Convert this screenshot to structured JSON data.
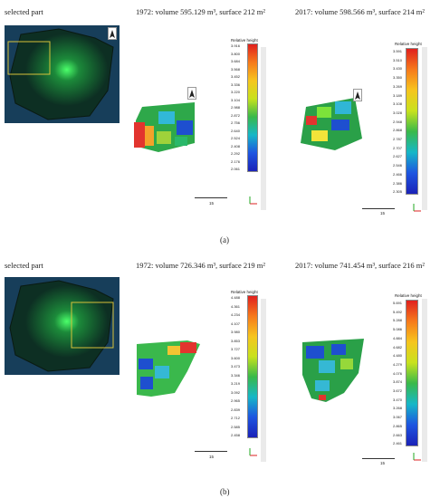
{
  "panels": [
    {
      "label": "(a)",
      "captions": {
        "selected": "selected part",
        "y1972": "1972: volume 595.129 m³, surface 212 m²",
        "y2017": "2017: volume 598.566 m³, surface 214 m²"
      },
      "cbar_title": "Relative height",
      "ticks_1972": [
        "3.916",
        "3.800",
        "3.684",
        "3.568",
        "3.452",
        "3.336",
        "3.220",
        "3.104",
        "2.988",
        "2.872",
        "2.756",
        "2.640",
        "2.524",
        "2.408",
        "2.292",
        "2.176",
        "2.061"
      ],
      "ticks_2017": [
        "3.591",
        "3.510",
        "3.430",
        "3.350",
        "3.269",
        "3.189",
        "3.108",
        "3.028",
        "2.948",
        "2.868",
        "2.787",
        "2.707",
        "2.627",
        "2.546",
        "2.466",
        "2.386",
        "2.305"
      ],
      "scale": "15"
    },
    {
      "label": "(b)",
      "captions": {
        "selected": "selected part",
        "y1972": "1972: volume 726.346 m³, surface 219 m²",
        "y2017": "2017: volume 741.454 m³, surface 216 m²"
      },
      "cbar_title": "Relative height",
      "ticks_1972": [
        "4.488",
        "4.361",
        "4.234",
        "4.107",
        "3.980",
        "3.853",
        "3.727",
        "3.600",
        "3.473",
        "3.346",
        "3.219",
        "3.092",
        "2.965",
        "2.839",
        "2.712",
        "2.585",
        "2.458"
      ],
      "ticks_2017": [
        "5.691",
        "5.492",
        "5.288",
        "5.086",
        "4.884",
        "4.682",
        "4.480",
        "4.279",
        "4.076",
        "3.874",
        "3.672",
        "3.470",
        "3.268",
        "3.067",
        "2.865",
        "2.663",
        "2.461"
      ],
      "scale": "15"
    }
  ]
}
